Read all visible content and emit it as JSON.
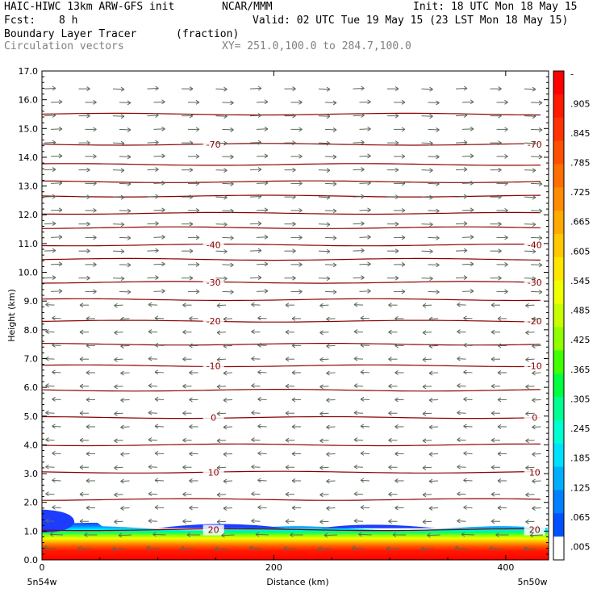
{
  "header": {
    "model": "HAIC-HIWC 13km ARW-GFS init",
    "org": "NCAR/MMM",
    "init": "Init: 18 UTC Mon 18 May 15",
    "fcst_label": "Fcst:",
    "fcst_value": "8 h",
    "valid": "Valid: 02 UTC Tue 19 May 15 (23 LST Mon 18 May 15)",
    "field": "Boundary Layer Tracer",
    "units": "(fraction)",
    "vectors": "Circulation vectors",
    "xy": "XY= 251.0,100.0 to 284.7,100.0"
  },
  "chart_data": {
    "type": "heatmap",
    "xlabel": "Distance (km)",
    "ylabel": "Height (km)",
    "xlim": [
      0,
      437
    ],
    "ylim": [
      0,
      17
    ],
    "x_ticks": [
      0,
      200,
      400
    ],
    "y_ticks": [
      "0.0",
      "1.0",
      "2.0",
      "3.0",
      "4.0",
      "5.0",
      "6.0",
      "7.0",
      "8.0",
      "9.0",
      "10.0",
      "11.0",
      "12.0",
      "13.0",
      "14.0",
      "15.0",
      "16.0",
      "17.0"
    ],
    "x_endpoint_labels": [
      "5n54w",
      "5n50w"
    ],
    "colorbar_labels": [
      "-",
      ".905",
      ".845",
      ".785",
      ".725",
      ".665",
      ".605",
      ".545",
      ".485",
      ".425",
      ".365",
      ".305",
      ".245",
      ".185",
      ".125",
      ".065",
      ".005"
    ],
    "colorbar_colors": [
      "#ff0000",
      "#ff1a00",
      "#ff3300",
      "#ff5000",
      "#ff6e00",
      "#ff8c00",
      "#ffaa00",
      "#ffc800",
      "#ffe600",
      "#f0ff00",
      "#c8ff00",
      "#90ff00",
      "#40ff00",
      "#00ff40",
      "#00ff90",
      "#00ffd0",
      "#00e0ff",
      "#00b0ff",
      "#0080ff",
      "#0050ff",
      "#ffffff"
    ],
    "temperature_contours": [
      {
        "label": "-70",
        "height_km": 14.45
      },
      {
        "label": "-40",
        "height_km": 10.95
      },
      {
        "label": "-30",
        "height_km": 9.65
      },
      {
        "label": "-20",
        "height_km": 8.3
      },
      {
        "label": "-10",
        "height_km": 6.75
      },
      {
        "label": "0",
        "height_km": 4.95
      },
      {
        "label": "10",
        "height_km": 3.05
      },
      {
        "label": "20",
        "height_km": 1.05
      }
    ],
    "unlabeled_contour_heights_km": [
      15.5,
      13.75,
      13.15,
      12.65,
      12.05,
      11.55,
      10.45,
      9.05,
      7.5,
      5.9,
      4.0,
      2.1
    ],
    "boundary_layer_top_km": 1.1,
    "vectors": {
      "upper_direction": "east",
      "lower_direction": "west",
      "shear_height_km": 9.3
    },
    "line_color": "#8b0000"
  }
}
